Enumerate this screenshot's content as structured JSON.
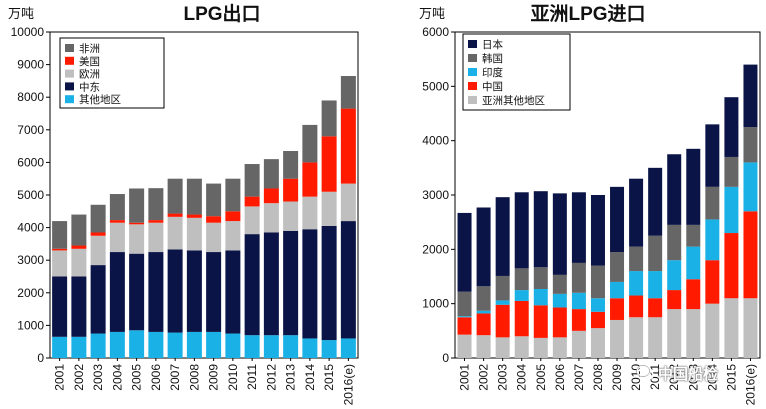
{
  "colors": {
    "africa": "#666666",
    "usa": "#ff1a00",
    "europe": "#bfbfbf",
    "middle_east": "#0b1446",
    "other": "#1ab2e6",
    "japan": "#0b1446",
    "korea": "#666666",
    "india": "#1ab2e6",
    "china": "#ff1a00",
    "asia_other": "#bfbfbf"
  },
  "watermark": {
    "text": "中国船检",
    "icon": "wechat-icon"
  },
  "chart_data": [
    {
      "type": "bar",
      "stacked": true,
      "title": "LPG出口",
      "ylabel": "万吨",
      "ylim": [
        0,
        10000
      ],
      "yticks": [
        0,
        1000,
        2000,
        3000,
        4000,
        5000,
        6000,
        7000,
        8000,
        9000,
        10000
      ],
      "grid": false,
      "legend_position": "top-left",
      "categories": [
        "2001",
        "2002",
        "2003",
        "2004",
        "2005",
        "2006",
        "2007",
        "2008",
        "2009",
        "2010",
        "2011",
        "2012",
        "2013",
        "2014",
        "2015",
        "2016(e)"
      ],
      "series": [
        {
          "name": "其他地区",
          "key": "other",
          "values": [
            650,
            650,
            750,
            800,
            850,
            800,
            780,
            800,
            800,
            750,
            700,
            700,
            700,
            600,
            550,
            600
          ]
        },
        {
          "name": "中东",
          "key": "middle_east",
          "values": [
            1850,
            1850,
            2100,
            2450,
            2350,
            2450,
            2550,
            2500,
            2450,
            2550,
            3100,
            3150,
            3200,
            3350,
            3500,
            3600
          ]
        },
        {
          "name": "欧洲",
          "key": "europe",
          "values": [
            800,
            850,
            900,
            900,
            900,
            900,
            1000,
            1000,
            900,
            900,
            850,
            900,
            900,
            1000,
            1050,
            1150
          ]
        },
        {
          "name": "美国",
          "key": "usa",
          "values": [
            50,
            100,
            100,
            80,
            50,
            80,
            100,
            100,
            200,
            300,
            300,
            450,
            700,
            1050,
            1700,
            2300
          ]
        },
        {
          "name": "非洲",
          "key": "africa",
          "values": [
            850,
            950,
            850,
            800,
            1050,
            980,
            1070,
            1100,
            1000,
            1000,
            1000,
            900,
            850,
            1150,
            1100,
            1000
          ]
        }
      ],
      "legend_order": [
        "非洲",
        "美国",
        "欧洲",
        "中东",
        "其他地区"
      ]
    },
    {
      "type": "bar",
      "stacked": true,
      "title": "亚洲LPG进口",
      "ylabel": "万吨",
      "ylim": [
        0,
        6000
      ],
      "yticks": [
        0,
        1000,
        2000,
        3000,
        4000,
        5000,
        6000
      ],
      "grid": false,
      "legend_position": "top-left",
      "categories": [
        "2001",
        "2002",
        "2003",
        "2004",
        "2005",
        "2006",
        "2007",
        "2008",
        "2009",
        "2010",
        "2011",
        "2012",
        "2013",
        "2014",
        "2015",
        "2016(e)"
      ],
      "series": [
        {
          "name": "亚洲其他地区",
          "key": "asia_other",
          "values": [
            430,
            420,
            380,
            400,
            370,
            380,
            500,
            550,
            700,
            750,
            750,
            900,
            900,
            1000,
            1100,
            1100
          ]
        },
        {
          "name": "中国",
          "key": "china",
          "values": [
            320,
            400,
            600,
            650,
            600,
            550,
            400,
            300,
            400,
            400,
            350,
            350,
            550,
            800,
            1200,
            1600
          ]
        },
        {
          "name": "印度",
          "key": "india",
          "values": [
            20,
            50,
            80,
            200,
            300,
            250,
            300,
            250,
            300,
            450,
            500,
            550,
            600,
            750,
            850,
            900
          ]
        },
        {
          "name": "韩国",
          "key": "korea",
          "values": [
            450,
            450,
            450,
            400,
            400,
            350,
            550,
            600,
            550,
            450,
            650,
            650,
            400,
            600,
            550,
            650
          ]
        },
        {
          "name": "日本",
          "key": "japan",
          "values": [
            1450,
            1450,
            1450,
            1400,
            1400,
            1500,
            1300,
            1300,
            1200,
            1250,
            1250,
            1300,
            1400,
            1150,
            1100,
            1150
          ]
        }
      ],
      "legend_order": [
        "日本",
        "韩国",
        "印度",
        "中国",
        "亚洲其他地区"
      ]
    }
  ]
}
